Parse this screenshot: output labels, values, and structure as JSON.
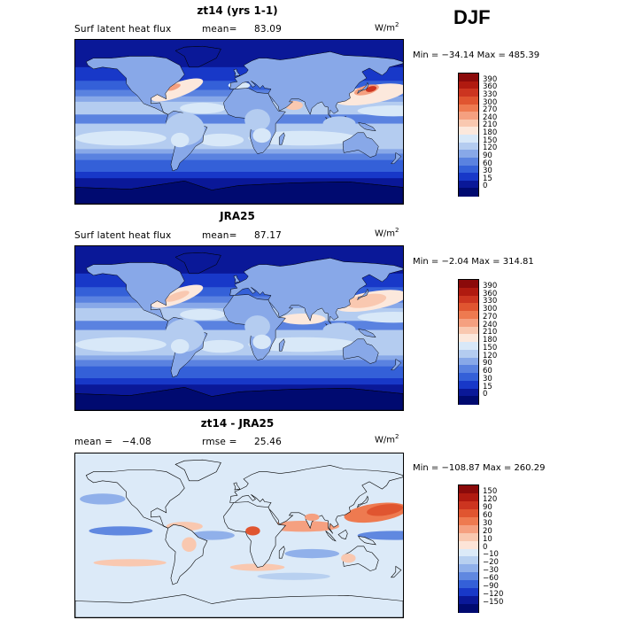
{
  "figure": {
    "season": "DJF"
  },
  "panels": [
    {
      "title": "zt14 (yrs 1-1)",
      "field_label": "Surf latent heat flux",
      "mean_label": "mean=",
      "mean_value": "83.09",
      "units": "W/m",
      "units_sup": "2",
      "minmax": "Min = −34.14 Max = 485.39",
      "map_type": "model"
    },
    {
      "title": "JRA25",
      "field_label": "Surf latent heat flux",
      "mean_label": "mean=",
      "mean_value": "87.17",
      "units": "W/m",
      "units_sup": "2",
      "minmax": "Min = −2.04 Max = 314.81",
      "map_type": "obs"
    },
    {
      "title": "zt14 - JRA25",
      "field_label": "mean =   −4.08",
      "mean_label": "rmse =",
      "mean_value": "25.46",
      "units": "W/m",
      "units_sup": "2",
      "minmax": "Min = −108.87 Max = 260.29",
      "map_type": "diff"
    }
  ],
  "colorbars": [
    {
      "levels": [
        "390",
        "360",
        "330",
        "300",
        "270",
        "240",
        "210",
        "180",
        "150",
        "120",
        "90",
        "60",
        "30",
        "15",
        "0"
      ],
      "colors": [
        "#8b0a0a",
        "#b01a10",
        "#cc3520",
        "#e05530",
        "#ee7a50",
        "#f5a080",
        "#f9c8b0",
        "#fce8dc",
        "#d8e8f8",
        "#b4ccf0",
        "#88a8e8",
        "#5a82e0",
        "#3460d8",
        "#1838c8",
        "#0a1898",
        "#000a70"
      ]
    },
    {
      "levels": [
        "390",
        "360",
        "330",
        "300",
        "270",
        "240",
        "210",
        "180",
        "150",
        "120",
        "90",
        "60",
        "30",
        "15",
        "0"
      ],
      "colors": [
        "#8b0a0a",
        "#b01a10",
        "#cc3520",
        "#e05530",
        "#ee7a50",
        "#f5a080",
        "#f9c8b0",
        "#fce8dc",
        "#d8e8f8",
        "#b4ccf0",
        "#88a8e8",
        "#5a82e0",
        "#3460d8",
        "#1838c8",
        "#0a1898",
        "#000a70"
      ]
    },
    {
      "levels": [
        "150",
        "120",
        "90",
        "60",
        "30",
        "20",
        "10",
        "0",
        "−10",
        "−20",
        "−30",
        "−60",
        "−90",
        "−120",
        "−150"
      ],
      "colors": [
        "#8b0a0a",
        "#b01a10",
        "#cc3520",
        "#e05530",
        "#ee7a50",
        "#f5a080",
        "#f9c8b0",
        "#fde4d8",
        "#dceaf8",
        "#b8d0f0",
        "#90b0ea",
        "#6088e0",
        "#3460d8",
        "#1838c8",
        "#0a1898",
        "#000a70"
      ]
    }
  ],
  "chart_data": [
    {
      "type": "heatmap",
      "title": "zt14 (yrs 1-1)",
      "subtitle": "Surf latent heat flux",
      "mean": 83.09,
      "min": -34.14,
      "max": 485.39,
      "units": "W/m2",
      "contour_levels": [
        0,
        15,
        30,
        60,
        90,
        120,
        150,
        180,
        210,
        240,
        270,
        300,
        330,
        360,
        390
      ]
    },
    {
      "type": "heatmap",
      "title": "JRA25",
      "subtitle": "Surf latent heat flux",
      "mean": 87.17,
      "min": -2.04,
      "max": 314.81,
      "units": "W/m2",
      "contour_levels": [
        0,
        15,
        30,
        60,
        90,
        120,
        150,
        180,
        210,
        240,
        270,
        300,
        330,
        360,
        390
      ]
    },
    {
      "type": "heatmap",
      "title": "zt14 - JRA25",
      "mean": -4.08,
      "rmse": 25.46,
      "min": -108.87,
      "max": 260.29,
      "units": "W/m2",
      "contour_levels": [
        -150,
        -120,
        -90,
        -60,
        -30,
        -20,
        -10,
        0,
        10,
        20,
        30,
        60,
        90,
        120,
        150
      ]
    }
  ]
}
